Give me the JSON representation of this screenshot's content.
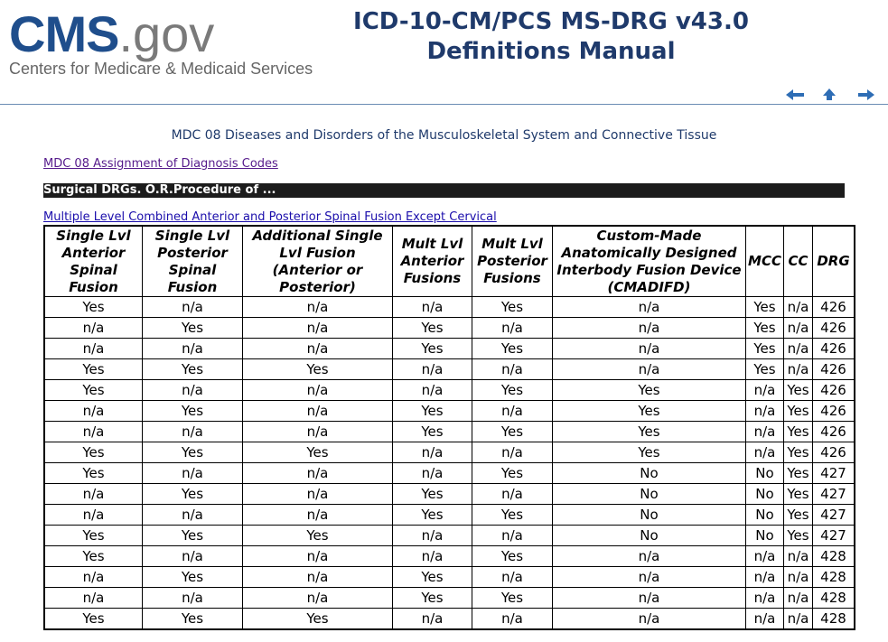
{
  "header": {
    "logo_main": "CMS",
    "logo_suffix": ".gov",
    "logo_tagline": "Centers for Medicare & Medicaid Services",
    "title_line1": "ICD-10-CM/PCS MS-DRG v43.0",
    "title_line2": "Definitions Manual"
  },
  "mdc_heading": "MDC 08 Diseases and Disorders of the Musculoskeletal System and Connective Tissue",
  "assignment_link": "MDC 08 Assignment of Diagnosis Codes",
  "section_bar": "Surgical DRGs. O.R.Procedure of ...",
  "table_link": "Multiple Level Combined Anterior and Posterior Spinal Fusion Except Cervical",
  "table": {
    "headers": [
      "Single Lvl Anterior Spinal Fusion",
      "Single Lvl Posterior Spinal Fusion",
      "Additional Single Lvl Fusion (Anterior or Posterior)",
      "Mult Lvl Anterior Fusions",
      "Mult Lvl Posterior Fusions",
      "Custom-Made Anatomically Designed Interbody Fusion Device (CMADIFD)",
      "MCC",
      "CC",
      "DRG"
    ],
    "rows": [
      [
        "Yes",
        "n/a",
        "n/a",
        "n/a",
        "Yes",
        "n/a",
        "Yes",
        "n/a",
        "426"
      ],
      [
        "n/a",
        "Yes",
        "n/a",
        "Yes",
        "n/a",
        "n/a",
        "Yes",
        "n/a",
        "426"
      ],
      [
        "n/a",
        "n/a",
        "n/a",
        "Yes",
        "Yes",
        "n/a",
        "Yes",
        "n/a",
        "426"
      ],
      [
        "Yes",
        "Yes",
        "Yes",
        "n/a",
        "n/a",
        "n/a",
        "Yes",
        "n/a",
        "426"
      ],
      [
        "Yes",
        "n/a",
        "n/a",
        "n/a",
        "Yes",
        "Yes",
        "n/a",
        "Yes",
        "426"
      ],
      [
        "n/a",
        "Yes",
        "n/a",
        "Yes",
        "n/a",
        "Yes",
        "n/a",
        "Yes",
        "426"
      ],
      [
        "n/a",
        "n/a",
        "n/a",
        "Yes",
        "Yes",
        "Yes",
        "n/a",
        "Yes",
        "426"
      ],
      [
        "Yes",
        "Yes",
        "Yes",
        "n/a",
        "n/a",
        "Yes",
        "n/a",
        "Yes",
        "426"
      ],
      [
        "Yes",
        "n/a",
        "n/a",
        "n/a",
        "Yes",
        "No",
        "No",
        "Yes",
        "427"
      ],
      [
        "n/a",
        "Yes",
        "n/a",
        "Yes",
        "n/a",
        "No",
        "No",
        "Yes",
        "427"
      ],
      [
        "n/a",
        "n/a",
        "n/a",
        "Yes",
        "Yes",
        "No",
        "No",
        "Yes",
        "427"
      ],
      [
        "Yes",
        "Yes",
        "Yes",
        "n/a",
        "n/a",
        "No",
        "No",
        "Yes",
        "427"
      ],
      [
        "Yes",
        "n/a",
        "n/a",
        "n/a",
        "Yes",
        "n/a",
        "n/a",
        "n/a",
        "428"
      ],
      [
        "n/a",
        "Yes",
        "n/a",
        "Yes",
        "n/a",
        "n/a",
        "n/a",
        "n/a",
        "428"
      ],
      [
        "n/a",
        "n/a",
        "n/a",
        "Yes",
        "Yes",
        "n/a",
        "n/a",
        "n/a",
        "428"
      ],
      [
        "Yes",
        "Yes",
        "Yes",
        "n/a",
        "n/a",
        "n/a",
        "n/a",
        "n/a",
        "428"
      ]
    ]
  }
}
